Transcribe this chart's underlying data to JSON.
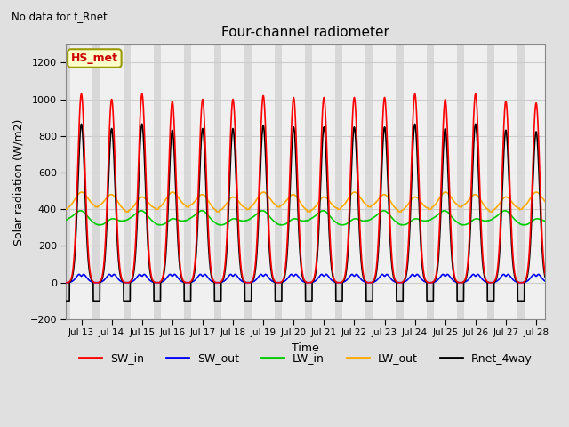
{
  "title": "Four-channel radiometer",
  "top_left_text": "No data for f_Rnet",
  "station_label": "HS_met",
  "xlabel": "Time",
  "ylabel": "Solar radiation (W/m2)",
  "ylim": [
    -200,
    1300
  ],
  "yticks": [
    -200,
    0,
    200,
    400,
    600,
    800,
    1000,
    1200
  ],
  "xlim_days": [
    12.5,
    28.3
  ],
  "xtick_days": [
    13,
    14,
    15,
    16,
    17,
    18,
    19,
    20,
    21,
    22,
    23,
    24,
    25,
    26,
    27,
    28
  ],
  "xtick_labels": [
    "Jul 13",
    "Jul 14",
    "Jul 15",
    "Jul 16",
    "Jul 17",
    "Jul 18",
    "Jul 19",
    "Jul 20",
    "Jul 21",
    "Jul 22",
    "Jul 23",
    "Jul 24",
    "Jul 25",
    "Jul 26",
    "Jul 27",
    "Jul 28"
  ],
  "legend_entries": [
    {
      "label": "SW_in",
      "color": "#ff0000",
      "lw": 1.2
    },
    {
      "label": "SW_out",
      "color": "#0000ff",
      "lw": 1.2
    },
    {
      "label": "LW_in",
      "color": "#00cc00",
      "lw": 1.2
    },
    {
      "label": "LW_out",
      "color": "#ffaa00",
      "lw": 1.2
    },
    {
      "label": "Rnet_4way",
      "color": "#000000",
      "lw": 1.2
    }
  ],
  "bg_color": "#e0e0e0",
  "plot_bg_color": "#ffffff",
  "grid_color": "#cccccc",
  "band_color_light": "#f0f0f0",
  "band_color_dark": "#d8d8d8"
}
